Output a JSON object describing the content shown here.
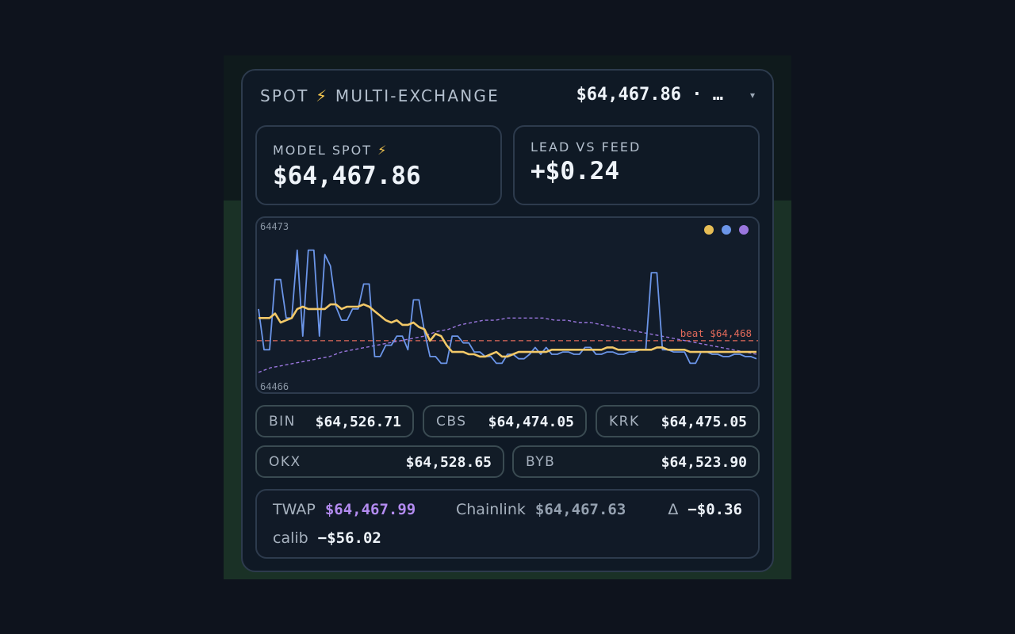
{
  "header": {
    "title": "SPOT",
    "bolt": "⚡",
    "subtitle": "MULTI-EXCHANGE",
    "price_summary": "$64,467.86 · …",
    "caret": "▾"
  },
  "stats": {
    "model_spot": {
      "label": "MODEL SPOT",
      "bolt": "⚡",
      "value": "$64,467.86"
    },
    "lead_vs_feed": {
      "label": "LEAD VS FEED",
      "value": "+$0.24"
    }
  },
  "chart": {
    "y_max_label": "64473",
    "y_min_label": "64466",
    "beat_label": "beat $64,468",
    "legend_colors": [
      "#e6bd55",
      "#6b95e8",
      "#9a76de"
    ]
  },
  "chart_data": {
    "type": "line",
    "ylim": [
      64466,
      64473
    ],
    "ticks": [
      "64473",
      "64466"
    ],
    "reference_line": {
      "label": "beat $64,468",
      "value": 64468,
      "color": "#e26a5a"
    },
    "series": [
      {
        "color": "#6b95e8",
        "values": [
          64469.4,
          64467.6,
          64467.6,
          64470.7,
          64470.7,
          64469.0,
          64469.0,
          64472.0,
          64468.2,
          64472.0,
          64472.0,
          64468.2,
          64471.8,
          64471.3,
          64469.5,
          64468.9,
          64468.9,
          64469.4,
          64469.4,
          64470.5,
          64470.5,
          64467.3,
          64467.3,
          64467.8,
          64467.8,
          64468.2,
          64468.2,
          64467.6,
          64469.8,
          64469.8,
          64468.4,
          64467.3,
          64467.3,
          64467.0,
          64467.0,
          64468.2,
          64468.2,
          64467.9,
          64467.9,
          64467.5,
          64467.5,
          64467.3,
          64467.3,
          64467.0,
          64467.0,
          64467.4,
          64467.4,
          64467.2,
          64467.2,
          64467.4,
          64467.7,
          64467.4,
          64467.7,
          64467.4,
          64467.4,
          64467.5,
          64467.5,
          64467.4,
          64467.4,
          64467.7,
          64467.7,
          64467.4,
          64467.4,
          64467.5,
          64467.5,
          64467.4,
          64467.4,
          64467.5,
          64467.5,
          64467.6,
          64467.6,
          64471.0,
          64471.0,
          64467.6,
          64467.6,
          64467.5,
          64467.5,
          64467.5,
          64467.0,
          64467.0,
          64467.5,
          64467.5,
          64467.4,
          64467.4,
          64467.3,
          64467.3,
          64467.4,
          64467.4,
          64467.3,
          64467.3,
          64467.2
        ]
      },
      {
        "color": "#f2c868",
        "values": [
          64469.0,
          64469.0,
          64469.0,
          64469.2,
          64468.8,
          64468.9,
          64469.0,
          64469.4,
          64469.5,
          64469.4,
          64469.4,
          64469.4,
          64469.4,
          64469.6,
          64469.6,
          64469.4,
          64469.5,
          64469.5,
          64469.5,
          64469.6,
          64469.5,
          64469.3,
          64469.1,
          64468.9,
          64468.8,
          64468.9,
          64468.7,
          64468.7,
          64468.8,
          64468.6,
          64468.5,
          64468.0,
          64468.3,
          64468.2,
          64467.8,
          64467.5,
          64467.5,
          64467.5,
          64467.4,
          64467.4,
          64467.3,
          64467.3,
          64467.4,
          64467.5,
          64467.3,
          64467.3,
          64467.4,
          64467.5,
          64467.5,
          64467.5,
          64467.5,
          64467.5,
          64467.5,
          64467.6,
          64467.6,
          64467.6,
          64467.6,
          64467.6,
          64467.6,
          64467.6,
          64467.6,
          64467.6,
          64467.6,
          64467.7,
          64467.7,
          64467.6,
          64467.6,
          64467.6,
          64467.6,
          64467.6,
          64467.6,
          64467.6,
          64467.7,
          64467.7,
          64467.6,
          64467.6,
          64467.6,
          64467.6,
          64467.5,
          64467.5,
          64467.5,
          64467.5,
          64467.5,
          64467.5,
          64467.5,
          64467.5,
          64467.5,
          64467.5,
          64467.5,
          64467.5,
          64467.5
        ]
      },
      {
        "color": "#9a76de",
        "values": [
          64466.6,
          64466.8,
          64466.9,
          64467.0,
          64467.1,
          64467.2,
          64467.3,
          64467.5,
          64467.6,
          64467.7,
          64467.8,
          64467.9,
          64468.0,
          64468.1,
          64468.2,
          64468.4,
          64468.5,
          64468.7,
          64468.8,
          64468.9,
          64468.9,
          64469.0,
          64469.0,
          64469.0,
          64469.0,
          64468.9,
          64468.9,
          64468.8,
          64468.8,
          64468.7,
          64468.6,
          64468.5,
          64468.4,
          64468.3,
          64468.2,
          64468.1,
          64468.0,
          64467.9,
          64467.8,
          64467.7,
          64467.6,
          64467.5,
          64467.4
        ]
      }
    ]
  },
  "exchanges": [
    {
      "code": "BIN",
      "price": "$64,526.71"
    },
    {
      "code": "CBS",
      "price": "$64,474.05"
    },
    {
      "code": "KRK",
      "price": "$64,475.05"
    },
    {
      "code": "OKX",
      "price": "$64,528.65"
    },
    {
      "code": "BYB",
      "price": "$64,523.90"
    }
  ],
  "summary": {
    "twap_label": "TWAP",
    "twap_value": "$64,467.99",
    "twap_color": "#b38bf0",
    "chainlink_label": "Chainlink",
    "chainlink_value": "$64,467.63",
    "chainlink_color": "#95a1b0",
    "delta_label": "Δ",
    "delta_value": "−$0.36",
    "calib_label": "calib",
    "calib_value": "−$56.02"
  }
}
